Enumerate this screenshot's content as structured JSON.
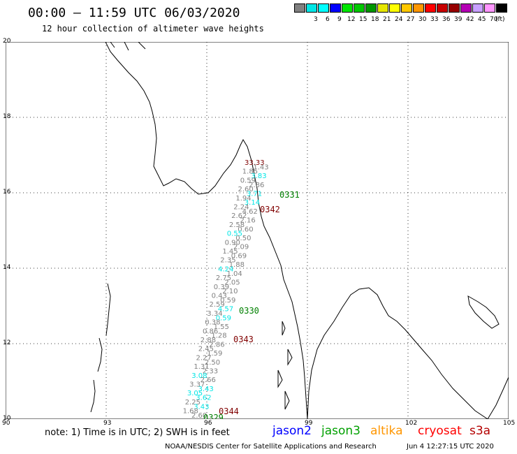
{
  "header": {
    "title": "00:00 – 11:59 UTC 06/03/2020",
    "subtitle": "12 hour collection of altimeter wave heights"
  },
  "legend": {
    "unit": "(ft)",
    "items": [
      {
        "label": "",
        "color": "#808080"
      },
      {
        "label": "3",
        "color": "#00e6e6"
      },
      {
        "label": "6",
        "color": "#00ffff"
      },
      {
        "label": "9",
        "color": "#0000ff"
      },
      {
        "label": "12",
        "color": "#00e600"
      },
      {
        "label": "15",
        "color": "#00c800"
      },
      {
        "label": "18",
        "color": "#009600"
      },
      {
        "label": "21",
        "color": "#e6e600"
      },
      {
        "label": "24",
        "color": "#ffff00"
      },
      {
        "label": "27",
        "color": "#ffc800"
      },
      {
        "label": "30",
        "color": "#ff9600"
      },
      {
        "label": "33",
        "color": "#ff0000"
      },
      {
        "label": "36",
        "color": "#c80000"
      },
      {
        "label": "39",
        "color": "#960000"
      },
      {
        "label": "42",
        "color": "#b400b4"
      },
      {
        "label": "45",
        "color": "#c8a0ff"
      },
      {
        "label": "70",
        "color": "#ff96ff"
      },
      {
        "label": "",
        "color": "#000000"
      }
    ]
  },
  "axes": {
    "lat_labels": [
      "20",
      "18",
      "16",
      "14",
      "12",
      "10"
    ],
    "lon_labels": [
      "90",
      "93",
      "96",
      "99",
      "102",
      "105"
    ]
  },
  "passes": [
    {
      "label": "0331",
      "color": "#008000"
    },
    {
      "label": "0342",
      "color": "#800000"
    },
    {
      "label": "0330",
      "color": "#008000"
    },
    {
      "label": "0343",
      "color": "#800000"
    },
    {
      "label": "0344",
      "color": "#800000"
    },
    {
      "label": "0329",
      "color": "#008000"
    }
  ],
  "wave_points": [
    {
      "value": "33.33",
      "color": "#800000"
    },
    {
      "value": "1.43",
      "color": "#808080"
    },
    {
      "value": "1.85",
      "color": "#808080"
    },
    {
      "value": "3.83",
      "color": "#00e6e6"
    },
    {
      "value": "0.59",
      "color": "#808080"
    },
    {
      "value": "2.86",
      "color": "#808080"
    },
    {
      "value": "2.60",
      "color": "#808080"
    },
    {
      "value": "3.71",
      "color": "#00e6e6"
    },
    {
      "value": "1.94",
      "color": "#808080"
    },
    {
      "value": "3.14",
      "color": "#00e6e6"
    },
    {
      "value": "2.24",
      "color": "#808080"
    },
    {
      "value": "4.62",
      "color": "#808080"
    },
    {
      "value": "2.62",
      "color": "#808080"
    },
    {
      "value": "2.16",
      "color": "#808080"
    },
    {
      "value": "2.58",
      "color": "#808080"
    },
    {
      "value": "0.60",
      "color": "#808080"
    },
    {
      "value": "0.55",
      "color": "#00e6e6"
    },
    {
      "value": "0.50",
      "color": "#808080"
    },
    {
      "value": "0.90",
      "color": "#808080"
    },
    {
      "value": "2.09",
      "color": "#808080"
    },
    {
      "value": "1.45",
      "color": "#808080"
    },
    {
      "value": "0.69",
      "color": "#808080"
    },
    {
      "value": "2.35",
      "color": "#808080"
    },
    {
      "value": "1.88",
      "color": "#808080"
    },
    {
      "value": "4.24",
      "color": "#00e6e6"
    },
    {
      "value": "1.04",
      "color": "#808080"
    },
    {
      "value": "2.75",
      "color": "#808080"
    },
    {
      "value": "2.05",
      "color": "#808080"
    },
    {
      "value": "0.39",
      "color": "#808080"
    },
    {
      "value": "2.10",
      "color": "#808080"
    },
    {
      "value": "0.43",
      "color": "#808080"
    },
    {
      "value": "0.59",
      "color": "#808080"
    },
    {
      "value": "2.59",
      "color": "#808080"
    },
    {
      "value": "4.57",
      "color": "#00e6e6"
    },
    {
      "value": "3.34",
      "color": "#808080"
    },
    {
      "value": "0.59",
      "color": "#00e6e6"
    },
    {
      "value": "0.38",
      "color": "#808080"
    },
    {
      "value": "1.55",
      "color": "#808080"
    },
    {
      "value": "0.86",
      "color": "#808080"
    },
    {
      "value": "1.28",
      "color": "#808080"
    },
    {
      "value": "2.88",
      "color": "#808080"
    },
    {
      "value": "2.86",
      "color": "#808080"
    },
    {
      "value": "2.45",
      "color": "#808080"
    },
    {
      "value": "1.59",
      "color": "#808080"
    },
    {
      "value": "2.27",
      "color": "#808080"
    },
    {
      "value": "2.50",
      "color": "#808080"
    },
    {
      "value": "1.31",
      "color": "#808080"
    },
    {
      "value": "2.33",
      "color": "#808080"
    },
    {
      "value": "3.08",
      "color": "#00e6e6"
    },
    {
      "value": "2.66",
      "color": "#808080"
    },
    {
      "value": "3.37",
      "color": "#808080"
    },
    {
      "value": "3.43",
      "color": "#00e6e6"
    },
    {
      "value": "3.05",
      "color": "#00e6e6"
    },
    {
      "value": "3.62",
      "color": "#00e6e6"
    },
    {
      "value": "2.25",
      "color": "#808080"
    },
    {
      "value": "3.43",
      "color": "#00e6e6"
    },
    {
      "value": "1.68",
      "color": "#808080"
    },
    {
      "value": "2.60",
      "color": "#808080"
    }
  ],
  "footer": {
    "note": "note: 1) Time is in UTC; 2) SWH is in feet",
    "satellites": [
      {
        "name": "jason2",
        "color": "#0000ff"
      },
      {
        "name": "jason3",
        "color": "#00a000"
      },
      {
        "name": "altika",
        "color": "#ff9600"
      },
      {
        "name": "cryosat",
        "color": "#ff0000"
      },
      {
        "name": "s3a",
        "color": "#b40000"
      }
    ],
    "credit": "NOAA/NESDIS Center for Satellite Applications and Research",
    "timestamp": "Jun  4 12:27:15 UTC 2020"
  }
}
